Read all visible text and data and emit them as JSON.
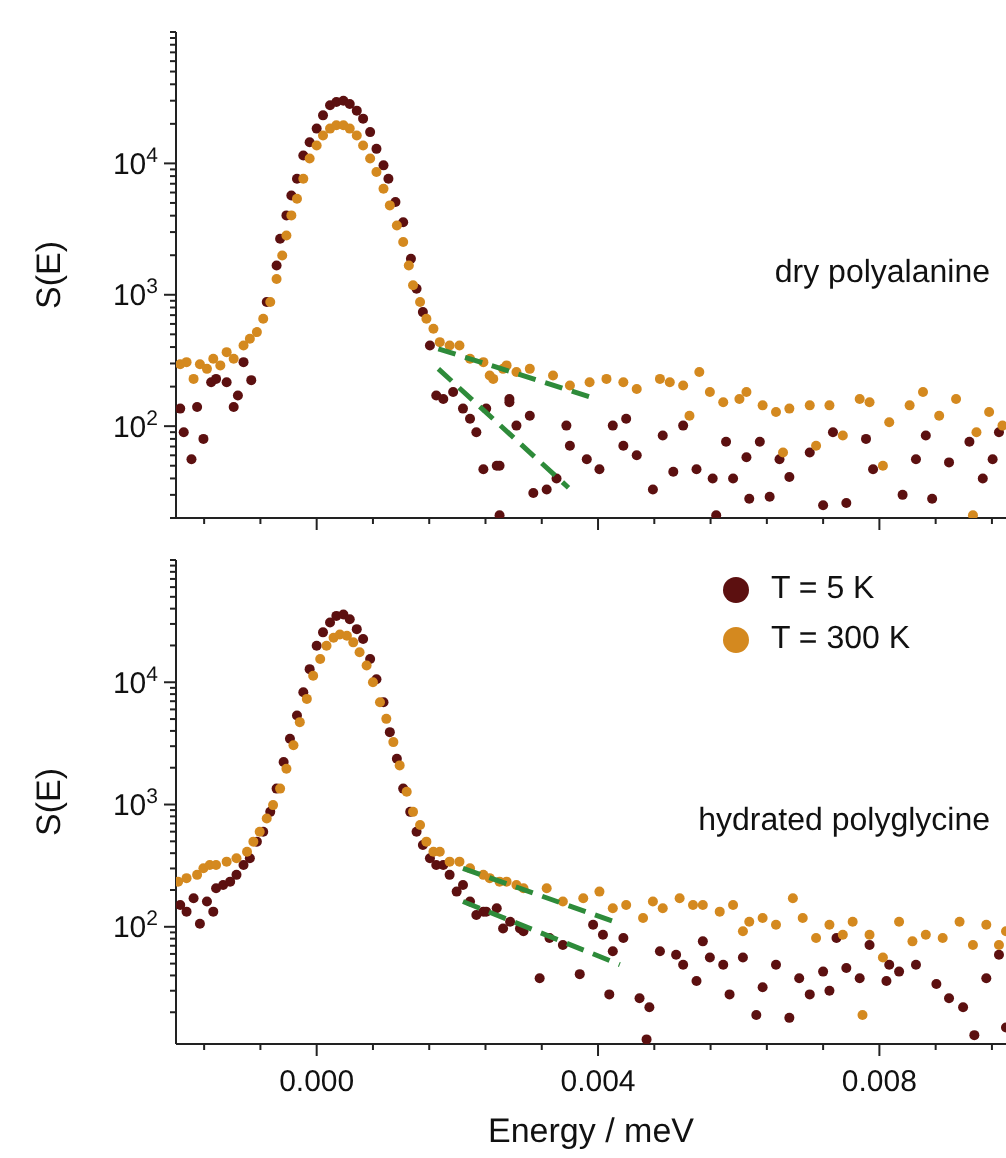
{
  "chart_data": [
    {
      "type": "scatter",
      "ylabel": "S(E)",
      "annotations": [
        "dry polyalanine"
      ],
      "log": "y",
      "tick_labels": "y",
      "xlim": [
        -0.002,
        0.0098
      ],
      "ylim": [
        20,
        100000
      ],
      "xticks": [
        {
          "value": -0.0016,
          "label": null
        },
        {
          "value": -0.0008,
          "label": null
        },
        0,
        {
          "value": 0.0008,
          "label": null
        },
        {
          "value": 0.0016,
          "label": null
        },
        {
          "value": 0.0024,
          "label": null
        },
        {
          "value": 0.0032,
          "label": null
        },
        0.004,
        {
          "value": 0.0048,
          "label": null
        },
        {
          "value": 0.0056,
          "label": null
        },
        {
          "value": 0.0064,
          "label": null
        },
        {
          "value": 0.0072,
          "label": null
        },
        0.008,
        {
          "value": 0.0088,
          "label": null
        },
        {
          "value": 0.0096,
          "label": null
        }
      ],
      "yticks": [
        {
          "value": 20,
          "label": null
        },
        {
          "value": 30,
          "label": null
        },
        {
          "value": 40,
          "label": null
        },
        {
          "value": 50,
          "label": null
        },
        {
          "value": 60,
          "label": null
        },
        {
          "value": 70,
          "label": null
        },
        {
          "value": 80,
          "label": null
        },
        {
          "value": 90,
          "label": null
        },
        {
          "value": 100,
          "label": "10$^{2}$"
        },
        {
          "value": 200,
          "label": null
        },
        {
          "value": 300,
          "label": null
        },
        {
          "value": 400,
          "label": null
        },
        {
          "value": 500,
          "label": null
        },
        {
          "value": 600,
          "label": null
        },
        {
          "value": 700,
          "label": null
        },
        {
          "value": 800,
          "label": null
        },
        {
          "value": 900,
          "label": null
        },
        {
          "value": 1000,
          "label": "10$^{3}$"
        },
        {
          "value": 2000,
          "label": null
        },
        {
          "value": 3000,
          "label": null
        },
        {
          "value": 4000,
          "label": null
        },
        {
          "value": 5000,
          "label": null
        },
        {
          "value": 6000,
          "label": null
        },
        {
          "value": 7000,
          "label": null
        },
        {
          "value": 8000,
          "label": null
        },
        {
          "value": 9000,
          "label": null
        },
        {
          "value": 10000,
          "label": "10$^{4}$"
        },
        {
          "value": 20000,
          "label": null
        },
        {
          "value": 30000,
          "label": null
        },
        {
          "value": 40000,
          "label": null
        },
        {
          "value": 50000,
          "label": null
        },
        {
          "value": 60000,
          "label": null
        },
        {
          "value": 70000,
          "label": null
        },
        {
          "value": 80000,
          "label": null
        },
        {
          "value": 90000,
          "label": null
        },
        {
          "value": 100000,
          "label": null
        }
      ],
      "series": [
        {
          "color": "#5c1010",
          "marker": "circle",
          "x": [
            -0.00194,
            -0.00189,
            -0.00178,
            -0.0017,
            -0.00161,
            -0.0015,
            -0.00143,
            -0.00128,
            -0.00118,
            -0.00112,
            -0.00104,
            -0.00093,
            -0.00071,
            -0.00057,
            -0.00052,
            -0.00043,
            -0.00036,
            -0.00028,
            -0.00019,
            -0.0001,
            0,
            9e-05,
            0.00019,
            0.00028,
            0.00038,
            0.00047,
            0.00057,
            0.00066,
            0.00076,
            0.00085,
            0.00095,
            0.00102,
            0.00112,
            0.00123,
            0.00134,
            0.00142,
            0.00151,
            0.00161,
            0.0017,
            0.0018,
            0.00194,
            0.00208,
            0.00218,
            0.00227,
            0.00237,
            0.00256,
            0.0026,
            0.00274,
            0.00284,
            0.00241,
            0.0026,
            0.00274,
            0.00303,
            0.00308,
            0.00327,
            0.00341,
            0.00355,
            0.0036,
            0.00384,
            0.00402,
            0.00421,
            0.00436,
            0.0044,
            0.00455,
            0.00478,
            0.00492,
            0.00507,
            0.00521,
            0.0054,
            0.00563,
            0.00568,
            0.00582,
            0.00592,
            0.00611,
            0.00615,
            0.0063,
            0.00644,
            0.00658,
            0.00672,
            0.00701,
            0.0072,
            0.00734,
            0.00753,
            0.00781,
            0.00791,
            0.00833,
            0.00852,
            0.00866,
            0.00875,
            0.00899,
            0.00928,
            0.00947,
            0.00961,
            0.0097
          ],
          "values": [
            136,
            90,
            56,
            140,
            80,
            216,
            229,
            216,
            140,
            171,
            307,
            224,
            880,
            1670,
            2670,
            4020,
            5700,
            7640,
            11500,
            14500,
            18400,
            23200,
            27700,
            29300,
            30000,
            28300,
            25200,
            21900,
            17300,
            12900,
            9660,
            7640,
            5080,
            3570,
            1880,
            1110,
            738,
            411,
            171,
            161,
            182,
            136,
            114,
            90,
            47,
            50,
            21,
            161,
            101,
            136,
            50,
            152,
            120,
            31,
            33,
            40,
            101,
            71,
            56,
            47,
            101,
            71,
            114,
            60,
            33,
            85,
            45,
            101,
            47,
            40,
            21,
            76,
            40,
            58,
            28,
            76,
            29,
            56,
            41,
            63,
            25,
            90,
            26,
            80,
            47,
            30,
            56,
            85,
            28,
            53,
            76,
            40,
            56,
            90
          ]
        },
        {
          "color": "#d4891f",
          "marker": "circle",
          "x": [
            -0.00194,
            -0.00185,
            -0.00175,
            -0.00166,
            -0.00156,
            -0.00147,
            -0.00137,
            -0.00128,
            -0.00118,
            -0.00104,
            -0.00095,
            -0.00085,
            -0.00076,
            -0.00066,
            -0.00057,
            -0.00049,
            -0.00043,
            -0.00036,
            -0.00028,
            -0.00019,
            -0.0001,
            0,
            9e-05,
            0.00019,
            0.00028,
            0.00038,
            0.00047,
            0.00057,
            0.00066,
            0.00076,
            0.00085,
            0.00095,
            0.00104,
            0.00114,
            0.00123,
            0.00131,
            0.00137,
            0.00147,
            0.00156,
            0.00166,
            0.00175,
            0.00189,
            0.00203,
            0.00218,
            0.00237,
            0.00251,
            0.00265,
            0.00284,
            0.00246,
            0.0027,
            0.00303,
            0.00336,
            0.0036,
            0.00388,
            0.00412,
            0.00436,
            0.00455,
            0.00488,
            0.00502,
            0.00521,
            0.00544,
            0.00559,
            0.00578,
            0.00601,
            0.00611,
            0.00634,
            0.00653,
            0.00672,
            0.00701,
            0.00729,
            0.00748,
            0.00772,
            0.00786,
            0.00814,
            0.00843,
            0.00862,
            0.00885,
            0.00909,
            0.00938,
            0.00956,
            0.00975,
            0.0053,
            0.00663,
            0.0071,
            0.00805,
            0.00933
          ],
          "values": [
            296,
            307,
            229,
            296,
            273,
            326,
            290,
            366,
            326,
            411,
            462,
            520,
            656,
            880,
            1320,
            1990,
            2830,
            4020,
            5380,
            7640,
            10900,
            13700,
            16300,
            18400,
            19500,
            19500,
            18400,
            16300,
            13700,
            10900,
            8590,
            6410,
            4790,
            3370,
            2520,
            1670,
            1180,
            880,
            656,
            551,
            436,
            411,
            411,
            326,
            307,
            229,
            273,
            258,
            243,
            290,
            273,
            243,
            204,
            216,
            229,
            216,
            192,
            229,
            216,
            204,
            258,
            182,
            152,
            161,
            182,
            144,
            128,
            136,
            144,
            144,
            85,
            161,
            152,
            107,
            144,
            182,
            120,
            161,
            90,
            128,
            101,
            120,
            63,
            71,
            50,
            21
          ]
        },
        {
          "type": "line",
          "color": "#2e8b3a",
          "line_style": "dashed",
          "x": [
            0.00173,
            0.00398
          ],
          "values": [
            388,
            161
          ]
        },
        {
          "type": "line",
          "color": "#2e8b3a",
          "line_style": "dashed",
          "x": [
            0.00173,
            0.00358
          ],
          "values": [
            273,
            34
          ]
        }
      ]
    },
    {
      "type": "scatter",
      "xlabel": "Energy / meV",
      "ylabel": "S(E)",
      "annotations": [
        "hydrated polyglycine"
      ],
      "log": "y",
      "legend": "top right",
      "xlim": [
        -0.002,
        0.0098
      ],
      "ylim": [
        11,
        100000
      ],
      "xticks": [
        {
          "value": -0.0016,
          "label": null
        },
        {
          "value": -0.0008,
          "label": null
        },
        {
          "value": 0,
          "label": "0.000"
        },
        {
          "value": 0.0008,
          "label": null
        },
        {
          "value": 0.0016,
          "label": null
        },
        {
          "value": 0.0024,
          "label": null
        },
        {
          "value": 0.0032,
          "label": null
        },
        {
          "value": 0.004,
          "label": "0.004"
        },
        {
          "value": 0.0048,
          "label": null
        },
        {
          "value": 0.0056,
          "label": null
        },
        {
          "value": 0.0064,
          "label": null
        },
        {
          "value": 0.0072,
          "label": null
        },
        {
          "value": 0.008,
          "label": "0.008"
        },
        {
          "value": 0.0088,
          "label": null
        },
        {
          "value": 0.0096,
          "label": null
        }
      ],
      "yticks": [
        {
          "value": 20,
          "label": null
        },
        {
          "value": 30,
          "label": null
        },
        {
          "value": 40,
          "label": null
        },
        {
          "value": 50,
          "label": null
        },
        {
          "value": 60,
          "label": null
        },
        {
          "value": 70,
          "label": null
        },
        {
          "value": 80,
          "label": null
        },
        {
          "value": 90,
          "label": null
        },
        {
          "value": 100,
          "label": "10$^{2}$"
        },
        {
          "value": 200,
          "label": null
        },
        {
          "value": 300,
          "label": null
        },
        {
          "value": 400,
          "label": null
        },
        {
          "value": 500,
          "label": null
        },
        {
          "value": 600,
          "label": null
        },
        {
          "value": 700,
          "label": null
        },
        {
          "value": 800,
          "label": null
        },
        {
          "value": 900,
          "label": null
        },
        {
          "value": 1000,
          "label": "10$^{3}$"
        },
        {
          "value": 2000,
          "label": null
        },
        {
          "value": 3000,
          "label": null
        },
        {
          "value": 4000,
          "label": null
        },
        {
          "value": 5000,
          "label": null
        },
        {
          "value": 6000,
          "label": null
        },
        {
          "value": 7000,
          "label": null
        },
        {
          "value": 8000,
          "label": null
        },
        {
          "value": 9000,
          "label": null
        },
        {
          "value": 10000,
          "label": "10$^{4}$"
        },
        {
          "value": 20000,
          "label": null
        },
        {
          "value": 30000,
          "label": null
        },
        {
          "value": 40000,
          "label": null
        },
        {
          "value": 50000,
          "label": null
        },
        {
          "value": 60000,
          "label": null
        },
        {
          "value": 70000,
          "label": null
        },
        {
          "value": 80000,
          "label": null
        },
        {
          "value": 90000,
          "label": null
        },
        {
          "value": 100000,
          "label": null
        }
      ],
      "series": [
        {
          "name": "T = 5 K",
          "color": "#5c1010",
          "marker": "circle",
          "x": [
            -0.00194,
            -0.00185,
            -0.00175,
            -0.00166,
            -0.00156,
            -0.00147,
            -0.00143,
            -0.00133,
            -0.00123,
            -0.00114,
            -0.00104,
            -0.00095,
            -0.00085,
            -0.00076,
            -0.00066,
            -0.00057,
            -0.00047,
            -0.00038,
            -0.00028,
            -0.00019,
            -0.0001,
            0,
            9e-05,
            0.00019,
            0.00028,
            0.00038,
            0.00047,
            0.00057,
            0.00066,
            0.00076,
            0.00085,
            0.00095,
            0.00104,
            0.00114,
            0.00123,
            0.00133,
            0.00142,
            0.00151,
            0.00161,
            0.0017,
            0.0018,
            0.00189,
            0.00199,
            0.00208,
            0.00218,
            0.00227,
            0.00237,
            0.00256,
            0.00275,
            0.00289,
            0.00241,
            0.00265,
            0.00294,
            0.00317,
            0.00331,
            0.0035,
            0.00374,
            0.00393,
            0.00416,
            0.00421,
            0.00436,
            0.00459,
            0.00473,
            0.00469,
            0.00488,
            0.00511,
            0.00521,
            0.0054,
            0.00559,
            0.00578,
            0.00587,
            0.00606,
            0.00625,
            0.00634,
            0.00653,
            0.00672,
            0.00686,
            0.00701,
            0.0072,
            0.00729,
            0.00753,
            0.00772,
            0.00786,
            0.0081,
            0.00828,
            0.00852,
            0.00881,
            0.00899,
            0.00919,
            0.00935,
            0.00952,
            0.0097,
            0.0098,
            0.00814,
            0.00739,
            0.00549,
            0.00407
          ],
          "values": [
            151,
            133,
            171,
            106,
            161,
            133,
            207,
            220,
            234,
            266,
            320,
            363,
            497,
            599,
            871,
            1350,
            2230,
            3450,
            5350,
            8280,
            12800,
            19900,
            25600,
            30800,
            34900,
            35800,
            32800,
            27200,
            22600,
            15500,
            10600,
            6870,
            3910,
            2370,
            1350,
            871,
            599,
            466,
            363,
            320,
            320,
            266,
            194,
            220,
            161,
            125,
            133,
            142,
            110,
            97,
            133,
            97,
            92,
            38,
            81,
            71,
            41,
            104,
            28,
            63,
            81,
            26,
            22,
            12,
            63,
            59,
            49,
            36,
            56,
            49,
            28,
            56,
            19,
            32,
            49,
            18,
            38,
            28,
            43,
            30,
            46,
            38,
            71,
            36,
            43,
            49,
            34,
            26,
            22,
            13,
            38,
            59,
            15,
            49,
            81,
            76,
            86
          ]
        },
        {
          "name": "T = 300 K",
          "color": "#d4891f",
          "marker": "circle",
          "x": [
            -0.00197,
            -0.00185,
            -0.0017,
            -0.00161,
            -0.00152,
            -0.00143,
            -0.00128,
            -0.00114,
            -0.00099,
            -0.0009,
            -0.00081,
            -0.00071,
            -0.00062,
            -0.00052,
            -0.00043,
            -0.00033,
            -0.00024,
            -0.00014,
            -5e-05,
            5e-05,
            0.00014,
            0.00024,
            0.00033,
            0.00043,
            0.00052,
            0.00061,
            0.00071,
            0.0008,
            0.0009,
            0.00099,
            0.00109,
            0.00118,
            0.00128,
            0.00137,
            0.00147,
            0.00156,
            0.00166,
            0.00175,
            0.00189,
            0.00203,
            0.00218,
            0.00237,
            0.0026,
            0.00284,
            0.00246,
            0.0027,
            0.00294,
            0.00327,
            0.0035,
            0.00379,
            0.00402,
            0.00421,
            0.0044,
            0.00464,
            0.00478,
            0.00492,
            0.00516,
            0.00535,
            0.00549,
            0.00573,
            0.00592,
            0.00606,
            0.00615,
            0.00634,
            0.00653,
            0.00677,
            0.00691,
            0.0071,
            0.00729,
            0.00748,
            0.00762,
            0.00776,
            0.00786,
            0.00805,
            0.00828,
            0.00847,
            0.00866,
            0.0089,
            0.00914,
            0.00933,
            0.00952,
            0.0097,
            0.0098
          ],
          "values": [
            234,
            250,
            266,
            301,
            320,
            320,
            341,
            363,
            411,
            497,
            599,
            769,
            989,
            1350,
            1960,
            3050,
            4720,
            7310,
            11300,
            15500,
            19900,
            23100,
            24600,
            24000,
            21200,
            17600,
            13700,
            10000,
            6870,
            5020,
            3240,
            2090,
            1270,
            871,
            679,
            497,
            411,
            411,
            341,
            341,
            301,
            266,
            234,
            220,
            250,
            234,
            207,
            207,
            161,
            171,
            194,
            142,
            151,
            118,
            161,
            142,
            171,
            151,
            151,
            133,
            151,
            92,
            110,
            118,
            104,
            171,
            118,
            81,
            104,
            86,
            110,
            19,
            86,
            56,
            110,
            76,
            86,
            81,
            110,
            71,
            104,
            71,
            92
          ]
        },
        {
          "type": "line",
          "color": "#2e8b3a",
          "line_style": "dashed",
          "x": [
            0.00208,
            0.00431
          ],
          "values": [
            301,
            106
          ]
        },
        {
          "type": "line",
          "color": "#2e8b3a",
          "line_style": "dashed",
          "x": [
            0.00208,
            0.00431
          ],
          "values": [
            161,
            49
          ]
        }
      ]
    }
  ]
}
